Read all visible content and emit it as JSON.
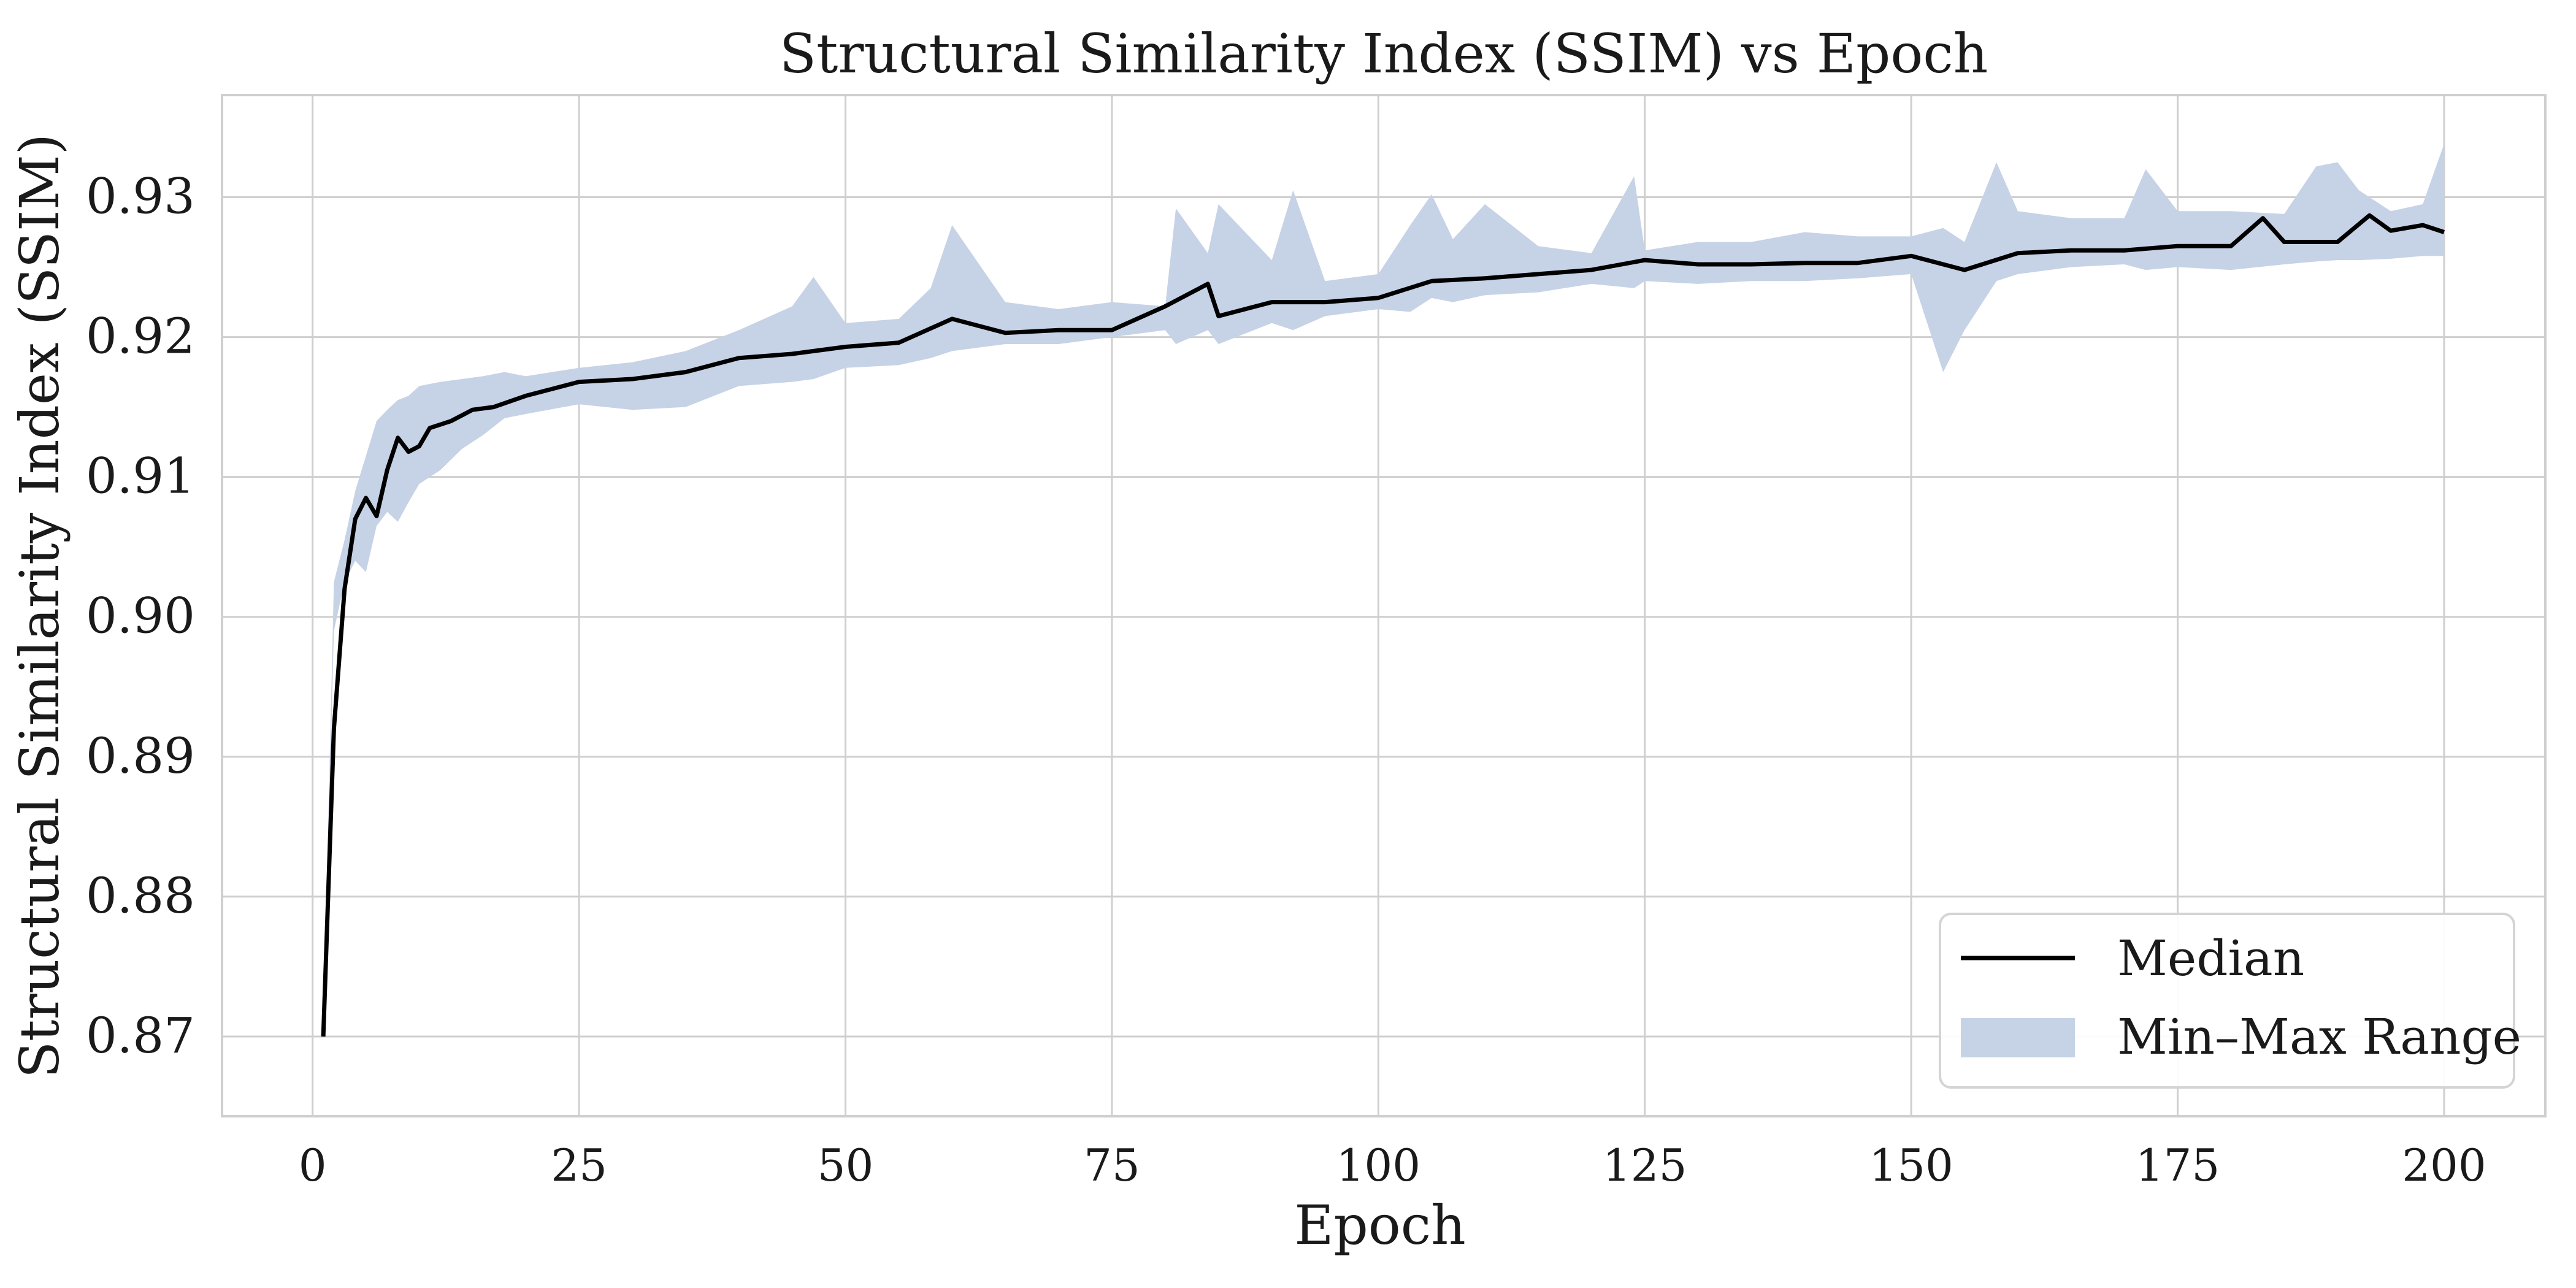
{
  "chart_data": {
    "type": "line",
    "title": "Structural Similarity Index (SSIM) vs Epoch",
    "xlabel": "Epoch",
    "ylabel": "Structural Similarity Index (SSIM)",
    "xlim": [
      -8.5,
      209.5
    ],
    "ylim": [
      0.8643,
      0.9373
    ],
    "x_ticks": [
      0,
      25,
      50,
      75,
      100,
      125,
      150,
      175,
      200
    ],
    "x_tick_labels": [
      "0",
      "25",
      "50",
      "75",
      "100",
      "125",
      "150",
      "175",
      "200"
    ],
    "y_ticks": [
      0.87,
      0.88,
      0.89,
      0.9,
      0.91,
      0.92,
      0.93
    ],
    "y_tick_labels": [
      "0.87",
      "0.88",
      "0.89",
      "0.90",
      "0.91",
      "0.92",
      "0.93"
    ],
    "grid": true,
    "legend": {
      "placement": "lower-right",
      "entries": [
        "Median",
        "Min–Max Range"
      ]
    },
    "colors": {
      "median": "#000000",
      "band": "#c6d2e6"
    },
    "series": [
      {
        "name": "Median",
        "role": "median",
        "x": [
          1,
          2,
          3,
          4,
          5,
          6,
          7,
          8,
          9,
          10,
          11,
          13,
          15,
          17,
          20,
          25,
          30,
          35,
          40,
          45,
          50,
          55,
          60,
          65,
          70,
          75,
          80,
          84,
          85,
          90,
          95,
          100,
          105,
          110,
          115,
          120,
          125,
          130,
          135,
          140,
          145,
          150,
          155,
          160,
          165,
          170,
          175,
          180,
          183,
          185,
          190,
          193,
          195,
          198,
          200
        ],
        "y": [
          0.87,
          0.892,
          0.902,
          0.907,
          0.9085,
          0.9072,
          0.9105,
          0.9128,
          0.9118,
          0.9122,
          0.9135,
          0.914,
          0.9148,
          0.915,
          0.9158,
          0.9168,
          0.917,
          0.9175,
          0.9185,
          0.9188,
          0.9193,
          0.9196,
          0.9213,
          0.9203,
          0.9205,
          0.9205,
          0.9222,
          0.9238,
          0.9215,
          0.9225,
          0.9225,
          0.9228,
          0.924,
          0.9242,
          0.9245,
          0.9248,
          0.9255,
          0.9252,
          0.9252,
          0.9253,
          0.9253,
          0.9258,
          0.9248,
          0.926,
          0.9262,
          0.9262,
          0.9265,
          0.9265,
          0.9285,
          0.9268,
          0.9268,
          0.9287,
          0.9276,
          0.928,
          0.9275
        ]
      },
      {
        "name": "Min–Max Range",
        "role": "band",
        "x": [
          1,
          2,
          3,
          4,
          5,
          6,
          7,
          8,
          9,
          10,
          12,
          14,
          16,
          18,
          20,
          25,
          30,
          35,
          40,
          45,
          47,
          50,
          55,
          58,
          60,
          65,
          70,
          75,
          80,
          81,
          84,
          85,
          90,
          92,
          95,
          100,
          103,
          105,
          107,
          110,
          115,
          120,
          124,
          125,
          130,
          135,
          140,
          145,
          150,
          153,
          155,
          158,
          160,
          165,
          170,
          172,
          175,
          180,
          185,
          188,
          190,
          192,
          195,
          198,
          200
        ],
        "y_min": [
          0.87,
          0.899,
          0.9025,
          0.904,
          0.9032,
          0.9065,
          0.9075,
          0.9068,
          0.9082,
          0.9095,
          0.9105,
          0.912,
          0.913,
          0.9142,
          0.9145,
          0.9152,
          0.9148,
          0.915,
          0.9165,
          0.9168,
          0.917,
          0.9178,
          0.918,
          0.9185,
          0.919,
          0.9195,
          0.9195,
          0.92,
          0.9205,
          0.9195,
          0.9205,
          0.9195,
          0.921,
          0.9205,
          0.9215,
          0.922,
          0.9218,
          0.9228,
          0.9225,
          0.923,
          0.9232,
          0.9238,
          0.9235,
          0.924,
          0.9238,
          0.924,
          0.924,
          0.9242,
          0.9245,
          0.9175,
          0.9205,
          0.924,
          0.9245,
          0.925,
          0.9252,
          0.9248,
          0.925,
          0.9248,
          0.9252,
          0.9254,
          0.9255,
          0.9255,
          0.9256,
          0.9258,
          0.9258
        ],
        "y_max": [
          0.87,
          0.9025,
          0.9055,
          0.909,
          0.9115,
          0.914,
          0.9148,
          0.9155,
          0.9158,
          0.9165,
          0.9168,
          0.917,
          0.9172,
          0.9175,
          0.9172,
          0.9178,
          0.9182,
          0.919,
          0.9205,
          0.9222,
          0.9243,
          0.921,
          0.9213,
          0.9235,
          0.928,
          0.9225,
          0.922,
          0.9225,
          0.9222,
          0.9292,
          0.926,
          0.9295,
          0.9255,
          0.9305,
          0.924,
          0.9245,
          0.928,
          0.9302,
          0.927,
          0.9295,
          0.9265,
          0.926,
          0.9315,
          0.9262,
          0.9268,
          0.9268,
          0.9275,
          0.9272,
          0.9272,
          0.9278,
          0.9268,
          0.9325,
          0.929,
          0.9285,
          0.9285,
          0.932,
          0.929,
          0.929,
          0.9288,
          0.9322,
          0.9325,
          0.9305,
          0.929,
          0.9295,
          0.9338
        ]
      }
    ]
  }
}
